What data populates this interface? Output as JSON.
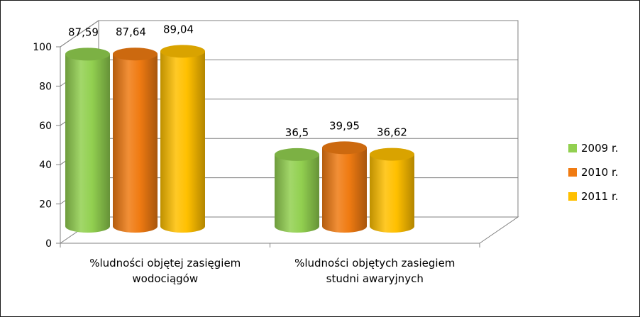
{
  "chart_data": {
    "type": "bar",
    "style": "3d-cylinder",
    "categories": [
      "%ludności objętej zasięgiem wodociągów",
      "%ludności objętych zasiegiem studni awaryjnych"
    ],
    "category_lines": [
      [
        "%ludności objętej zasięgiem",
        "wodociągów"
      ],
      [
        "%ludności objętych zasiegiem",
        "studni awaryjnych"
      ]
    ],
    "series": [
      {
        "name": "2009 r.",
        "values": [
          87.59,
          36.5
        ],
        "labels": [
          "87,59",
          "36,5"
        ],
        "color": "#92d050"
      },
      {
        "name": "2010 r.",
        "values": [
          87.64,
          39.95
        ],
        "labels": [
          "87,64",
          "39,95"
        ],
        "color": "#f07b12"
      },
      {
        "name": "2011 r.",
        "values": [
          89.04,
          36.62
        ],
        "labels": [
          "89,04",
          "36,62"
        ],
        "color": "#ffc000"
      }
    ],
    "ylim": [
      0,
      100
    ],
    "yticks": [
      "0",
      "20",
      "40",
      "60",
      "80",
      "100"
    ],
    "grid": true,
    "legend": "right",
    "title": "",
    "xlabel": "",
    "ylabel": ""
  }
}
